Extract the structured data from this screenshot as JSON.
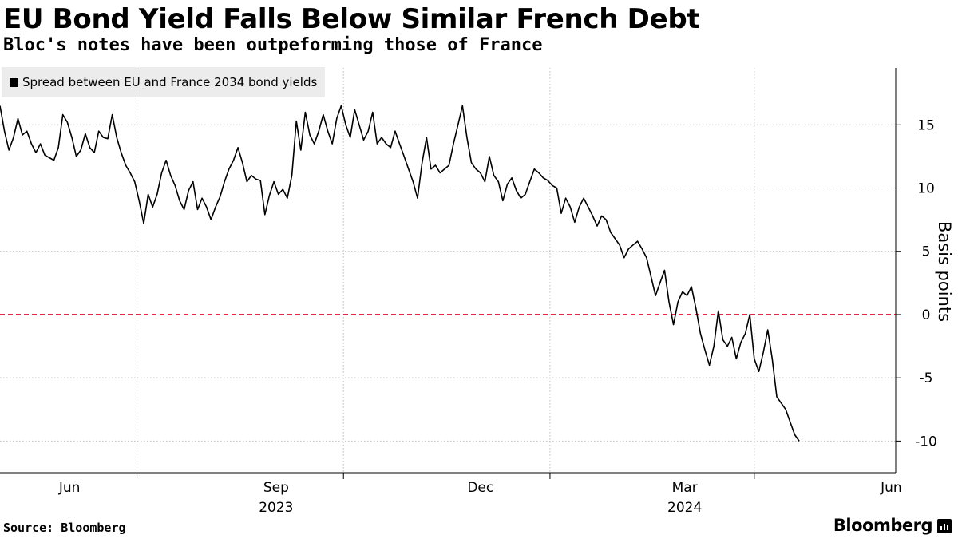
{
  "header": {
    "title": "EU Bond Yield Falls Below Similar French Debt",
    "subtitle": "Bloc's notes have been outpeforming those of France"
  },
  "legend": {
    "label": "Spread between EU and France 2034 bond yields"
  },
  "footer": {
    "source": "Source: Bloomberg",
    "brand": "Bloomberg"
  },
  "colors": {
    "line": "#000000",
    "reference": "#e8264a",
    "grid": "#bbbbbb",
    "legend_bg": "#ececec"
  },
  "chart_data": {
    "type": "line",
    "title": "EU Bond Yield Falls Below Similar French Debt",
    "subtitle": "Bloc's notes have been outpeforming those of France",
    "xlabel": "",
    "ylabel": "Basis points",
    "ylim": [
      -12.5,
      19.5
    ],
    "yticks": [
      15,
      10,
      5,
      0,
      -5,
      -10
    ],
    "ytick_labels": [
      "15",
      "10",
      "5",
      "0",
      "-5",
      "-10"
    ],
    "x_range": [
      "2023-05-01",
      "2024-06-03"
    ],
    "x_month_ticks": [
      {
        "date": "2023-06-01",
        "label": "Jun"
      },
      {
        "date": "2023-09-01",
        "label": "Sep"
      },
      {
        "date": "2023-12-01",
        "label": "Dec"
      },
      {
        "date": "2024-03-01",
        "label": "Mar"
      },
      {
        "date": "2024-06-01",
        "label": "Jun"
      }
    ],
    "x_year_labels": [
      {
        "date": "2023-09-01",
        "label": "2023"
      },
      {
        "date": "2024-03-01",
        "label": "2024"
      }
    ],
    "x_gridlines": [
      "2023-07-01",
      "2023-10-01",
      "2024-01-01",
      "2024-04-01"
    ],
    "reference_line": {
      "y": 0,
      "style": "dashed",
      "color": "#e8264a"
    },
    "grid": true,
    "legend_position": "top-left",
    "series": [
      {
        "name": "Spread between EU and France 2034 bond yields",
        "points": [
          [
            "2023-05-01",
            16.5
          ],
          [
            "2023-05-03",
            14.5
          ],
          [
            "2023-05-05",
            13.0
          ],
          [
            "2023-05-07",
            14.0
          ],
          [
            "2023-05-09",
            15.5
          ],
          [
            "2023-05-11",
            14.2
          ],
          [
            "2023-05-13",
            14.5
          ],
          [
            "2023-05-15",
            13.5
          ],
          [
            "2023-05-17",
            12.8
          ],
          [
            "2023-05-19",
            13.5
          ],
          [
            "2023-05-21",
            12.6
          ],
          [
            "2023-05-23",
            12.4
          ],
          [
            "2023-05-25",
            12.2
          ],
          [
            "2023-05-27",
            13.2
          ],
          [
            "2023-05-29",
            15.8
          ],
          [
            "2023-05-31",
            15.2
          ],
          [
            "2023-06-02",
            14.0
          ],
          [
            "2023-06-04",
            12.5
          ],
          [
            "2023-06-06",
            13.0
          ],
          [
            "2023-06-08",
            14.3
          ],
          [
            "2023-06-10",
            13.2
          ],
          [
            "2023-06-12",
            12.8
          ],
          [
            "2023-06-14",
            14.5
          ],
          [
            "2023-06-16",
            14.0
          ],
          [
            "2023-06-18",
            13.9
          ],
          [
            "2023-06-20",
            15.8
          ],
          [
            "2023-06-22",
            14.0
          ],
          [
            "2023-06-24",
            12.8
          ],
          [
            "2023-06-26",
            11.8
          ],
          [
            "2023-06-28",
            11.2
          ],
          [
            "2023-06-30",
            10.5
          ],
          [
            "2023-07-02",
            9.0
          ],
          [
            "2023-07-04",
            7.2
          ],
          [
            "2023-07-06",
            9.5
          ],
          [
            "2023-07-08",
            8.5
          ],
          [
            "2023-07-10",
            9.5
          ],
          [
            "2023-07-12",
            11.2
          ],
          [
            "2023-07-14",
            12.2
          ],
          [
            "2023-07-16",
            11.0
          ],
          [
            "2023-07-18",
            10.2
          ],
          [
            "2023-07-20",
            9.0
          ],
          [
            "2023-07-22",
            8.3
          ],
          [
            "2023-07-24",
            9.8
          ],
          [
            "2023-07-26",
            10.5
          ],
          [
            "2023-07-28",
            8.3
          ],
          [
            "2023-07-30",
            9.2
          ],
          [
            "2023-08-01",
            8.5
          ],
          [
            "2023-08-03",
            7.5
          ],
          [
            "2023-08-05",
            8.5
          ],
          [
            "2023-08-07",
            9.3
          ],
          [
            "2023-08-09",
            10.5
          ],
          [
            "2023-08-11",
            11.5
          ],
          [
            "2023-08-13",
            12.2
          ],
          [
            "2023-08-15",
            13.2
          ],
          [
            "2023-08-17",
            12.0
          ],
          [
            "2023-08-19",
            10.5
          ],
          [
            "2023-08-21",
            11.0
          ],
          [
            "2023-08-23",
            10.7
          ],
          [
            "2023-08-25",
            10.6
          ],
          [
            "2023-08-27",
            7.9
          ],
          [
            "2023-08-29",
            9.4
          ],
          [
            "2023-08-31",
            10.5
          ],
          [
            "2023-09-02",
            9.5
          ],
          [
            "2023-09-04",
            9.9
          ],
          [
            "2023-09-06",
            9.2
          ],
          [
            "2023-09-08",
            11.0
          ],
          [
            "2023-09-10",
            15.3
          ],
          [
            "2023-09-12",
            13.0
          ],
          [
            "2023-09-14",
            16.0
          ],
          [
            "2023-09-16",
            14.2
          ],
          [
            "2023-09-18",
            13.5
          ],
          [
            "2023-09-20",
            14.5
          ],
          [
            "2023-09-22",
            15.8
          ],
          [
            "2023-09-24",
            14.5
          ],
          [
            "2023-09-26",
            13.5
          ],
          [
            "2023-09-28",
            15.5
          ],
          [
            "2023-09-30",
            16.5
          ],
          [
            "2023-10-02",
            15.0
          ],
          [
            "2023-10-04",
            14.0
          ],
          [
            "2023-10-06",
            16.2
          ],
          [
            "2023-10-08",
            15.0
          ],
          [
            "2023-10-10",
            13.8
          ],
          [
            "2023-10-12",
            14.5
          ],
          [
            "2023-10-14",
            16.0
          ],
          [
            "2023-10-16",
            13.5
          ],
          [
            "2023-10-18",
            14.0
          ],
          [
            "2023-10-20",
            13.5
          ],
          [
            "2023-10-22",
            13.2
          ],
          [
            "2023-10-24",
            14.5
          ],
          [
            "2023-10-26",
            13.5
          ],
          [
            "2023-10-28",
            12.5
          ],
          [
            "2023-10-30",
            11.5
          ],
          [
            "2023-11-01",
            10.5
          ],
          [
            "2023-11-03",
            9.2
          ],
          [
            "2023-11-05",
            12.0
          ],
          [
            "2023-11-07",
            14.0
          ],
          [
            "2023-11-09",
            11.5
          ],
          [
            "2023-11-11",
            11.8
          ],
          [
            "2023-11-13",
            11.2
          ],
          [
            "2023-11-15",
            11.5
          ],
          [
            "2023-11-17",
            11.8
          ],
          [
            "2023-11-19",
            13.5
          ],
          [
            "2023-11-21",
            15.0
          ],
          [
            "2023-11-23",
            16.5
          ],
          [
            "2023-11-25",
            14.0
          ],
          [
            "2023-11-27",
            12.0
          ],
          [
            "2023-11-29",
            11.5
          ],
          [
            "2023-12-01",
            11.2
          ],
          [
            "2023-12-03",
            10.5
          ],
          [
            "2023-12-05",
            12.5
          ],
          [
            "2023-12-07",
            11.0
          ],
          [
            "2023-12-09",
            10.5
          ],
          [
            "2023-12-11",
            9.0
          ],
          [
            "2023-12-13",
            10.3
          ],
          [
            "2023-12-15",
            10.8
          ],
          [
            "2023-12-17",
            9.8
          ],
          [
            "2023-12-19",
            9.2
          ],
          [
            "2023-12-21",
            9.5
          ],
          [
            "2023-12-23",
            10.5
          ],
          [
            "2023-12-25",
            11.5
          ],
          [
            "2023-12-27",
            11.2
          ],
          [
            "2023-12-29",
            10.8
          ],
          [
            "2023-12-31",
            10.6
          ],
          [
            "2024-01-02",
            10.2
          ],
          [
            "2024-01-04",
            10.0
          ],
          [
            "2024-01-06",
            8.0
          ],
          [
            "2024-01-08",
            9.2
          ],
          [
            "2024-01-10",
            8.5
          ],
          [
            "2024-01-12",
            7.3
          ],
          [
            "2024-01-14",
            8.5
          ],
          [
            "2024-01-16",
            9.2
          ],
          [
            "2024-01-18",
            8.5
          ],
          [
            "2024-01-20",
            7.8
          ],
          [
            "2024-01-22",
            7.0
          ],
          [
            "2024-01-24",
            7.8
          ],
          [
            "2024-01-26",
            7.5
          ],
          [
            "2024-01-28",
            6.5
          ],
          [
            "2024-01-30",
            6.0
          ],
          [
            "2024-02-01",
            5.5
          ],
          [
            "2024-02-03",
            4.5
          ],
          [
            "2024-02-05",
            5.2
          ],
          [
            "2024-02-07",
            5.5
          ],
          [
            "2024-02-09",
            5.8
          ],
          [
            "2024-02-11",
            5.2
          ],
          [
            "2024-02-13",
            4.5
          ],
          [
            "2024-02-15",
            3.0
          ],
          [
            "2024-02-17",
            1.5
          ],
          [
            "2024-02-19",
            2.5
          ],
          [
            "2024-02-21",
            3.5
          ],
          [
            "2024-02-23",
            1.0
          ],
          [
            "2024-02-25",
            -0.8
          ],
          [
            "2024-02-27",
            1.0
          ],
          [
            "2024-02-29",
            1.8
          ],
          [
            "2024-03-02",
            1.5
          ],
          [
            "2024-03-04",
            2.2
          ],
          [
            "2024-03-06",
            0.5
          ],
          [
            "2024-03-08",
            -1.5
          ],
          [
            "2024-03-10",
            -2.8
          ],
          [
            "2024-03-12",
            -4.0
          ],
          [
            "2024-03-14",
            -2.5
          ],
          [
            "2024-03-16",
            0.3
          ],
          [
            "2024-03-18",
            -2.0
          ],
          [
            "2024-03-20",
            -2.5
          ],
          [
            "2024-03-22",
            -1.8
          ],
          [
            "2024-03-24",
            -3.5
          ],
          [
            "2024-03-26",
            -2.2
          ],
          [
            "2024-03-28",
            -1.5
          ],
          [
            "2024-03-30",
            0.0
          ],
          [
            "2024-04-01",
            -3.5
          ],
          [
            "2024-04-03",
            -4.5
          ],
          [
            "2024-04-05",
            -3.0
          ],
          [
            "2024-04-07",
            -1.2
          ],
          [
            "2024-04-09",
            -3.5
          ],
          [
            "2024-04-11",
            -6.5
          ],
          [
            "2024-04-13",
            -7.0
          ],
          [
            "2024-04-15",
            -7.5
          ],
          [
            "2024-04-17",
            -8.5
          ],
          [
            "2024-04-19",
            -9.5
          ],
          [
            "2024-04-21",
            -10.0
          ]
        ]
      }
    ]
  },
  "axes": {
    "y_title": "Basis points"
  }
}
